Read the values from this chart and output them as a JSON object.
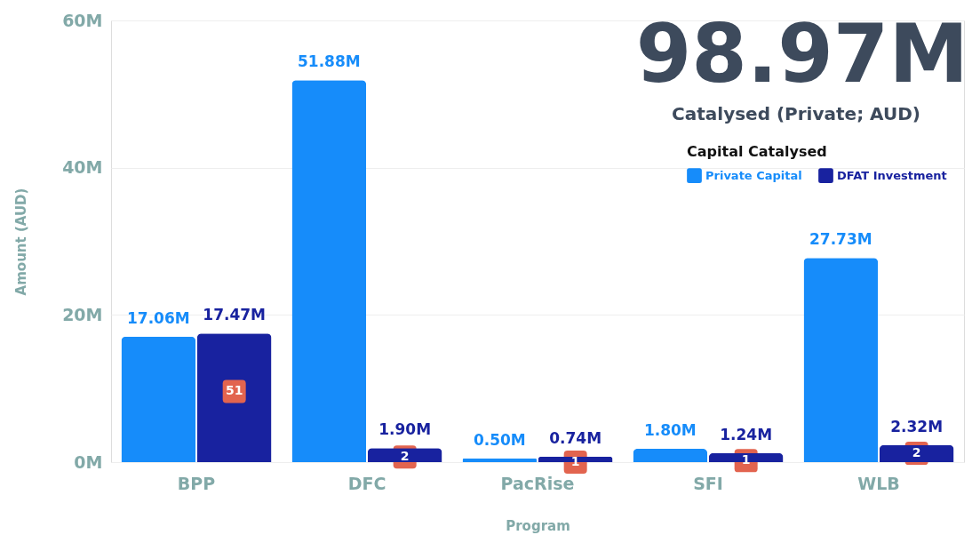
{
  "chart_data": {
    "type": "bar",
    "xlabel": "Program",
    "ylabel": "Amount (AUD)",
    "legend_title": "Capital Catalysed",
    "categories": [
      "BPP",
      "DFC",
      "PacRise",
      "SFI",
      "WLB"
    ],
    "series": [
      {
        "name": "Private Capital",
        "color": "#168cfa",
        "values": [
          17.06,
          51.88,
          0.5,
          1.8,
          27.73
        ],
        "value_labels": [
          "17.06M",
          "51.88M",
          "0.50M",
          "1.80M",
          "27.73M"
        ]
      },
      {
        "name": "DFAT Investment",
        "color": "#18229f",
        "values": [
          17.47,
          1.9,
          0.74,
          1.24,
          2.32
        ],
        "value_labels": [
          "17.47M",
          "1.90M",
          "0.74M",
          "1.24M",
          "2.32M"
        ]
      }
    ],
    "ylim": [
      0,
      60
    ],
    "yticks": [
      {
        "value": 0,
        "label": "0M"
      },
      {
        "value": 20,
        "label": "20M"
      },
      {
        "value": 40,
        "label": "40M"
      },
      {
        "value": 60,
        "label": "60M"
      }
    ],
    "grid": "y",
    "legend": "top right",
    "annotations": [
      "98.97M",
      "Catalysed (Private; AUD)",
      {
        "text": "51",
        "x": "BPP",
        "y": 9.6
      },
      {
        "text": "2",
        "x": "DFC",
        "y": 0.7
      },
      {
        "text": "1",
        "x": "PacRise",
        "y": 0
      },
      {
        "text": "1",
        "x": "SFI",
        "y": 0.2
      },
      {
        "text": "2",
        "x": "WLB",
        "y": 1.2
      }
    ]
  }
}
